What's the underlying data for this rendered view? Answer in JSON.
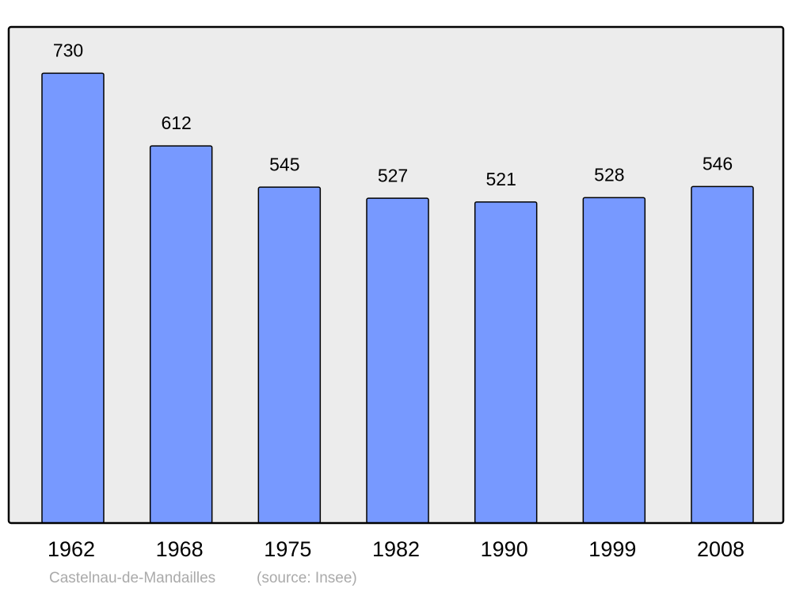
{
  "chart_data": {
    "type": "bar",
    "categories": [
      "1962",
      "1968",
      "1975",
      "1982",
      "1990",
      "1999",
      "2008"
    ],
    "values": [
      730,
      612,
      545,
      527,
      521,
      528,
      546
    ],
    "color": "#7799ff",
    "ylim": [
      0,
      805
    ],
    "caption": "Castelnau-de-Mandailles",
    "source": "(source: Insee)"
  }
}
